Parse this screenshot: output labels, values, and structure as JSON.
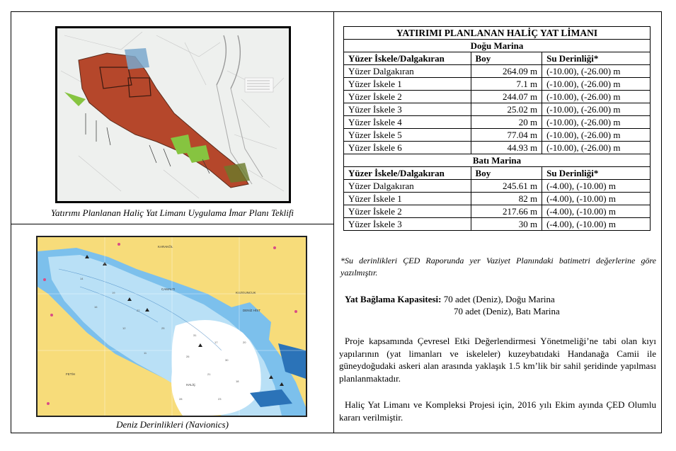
{
  "left": {
    "plan_caption": "Yatırımı Planlanan Haliç Yat Limanı Uygulama İmar Planı Teklifi",
    "map_caption": "Deniz Derinlikleri (Navionics)",
    "map_labels": [
      "HALİÇ",
      "FETİH",
      "KARAKÖL",
      "CAMALTI",
      "KUZGUNCUK",
      "DENİZ HİST"
    ],
    "map_depths": [
      "14",
      "19",
      "22",
      "25",
      "31",
      "17",
      "26",
      "30",
      "11",
      "21",
      "18",
      "28",
      "23",
      "12",
      "20",
      "16"
    ]
  },
  "table": {
    "title": "YATIRIMI PLANLANAN HALİÇ YAT LİMANI",
    "east_title": "Doğu Marina",
    "west_title": "Batı Marina",
    "headers": [
      "Yüzer İskele/Dalgakıran",
      "Boy",
      "Su Derinliği*"
    ],
    "east_rows": [
      [
        "Yüzer Dalgakıran",
        "264.09 m",
        "(-10.00), (-26.00) m"
      ],
      [
        "Yüzer İskele 1",
        "7.1 m",
        "(-10.00), (-26.00) m"
      ],
      [
        "Yüzer İskele 2",
        "244.07 m",
        "(-10.00), (-26.00) m"
      ],
      [
        "Yüzer İskele 3",
        "25.02 m",
        "(-10.00), (-26.00) m"
      ],
      [
        "Yüzer İskele 4",
        "20 m",
        "(-10.00), (-26.00) m"
      ],
      [
        "Yüzer İskele 5",
        "77.04 m",
        "(-10.00), (-26.00) m"
      ],
      [
        "Yüzer İskele 6",
        "44.93 m",
        "(-10.00), (-26.00) m"
      ]
    ],
    "west_rows": [
      [
        "Yüzer Dalgakıran",
        "245.61 m",
        "(-4.00), (-10.00) m"
      ],
      [
        "Yüzer İskele 1",
        "82 m",
        "(-4.00), (-10.00) m"
      ],
      [
        "Yüzer İskele 2",
        "217.66 m",
        "(-4.00), (-10.00) m"
      ],
      [
        "Yüzer İskele 3",
        "30 m",
        "(-4.00), (-10.00) m"
      ]
    ]
  },
  "note": "*Su derinlikleri ÇED Raporunda yer Vaziyet Planındaki batimetri değerlerine göre yazılmıştır.",
  "capacity": {
    "label": "Yat Bağlama Kapasitesi:",
    "line1": "70 adet (Deniz), Doğu Marina",
    "line2": "70 adet (Deniz), Batı Marina"
  },
  "paragraphs": [
    "Proje kapsamında Çevresel Etki Değerlendirmesi Yönetmeliği’ne tabi olan kıyı yapılarının (yat limanları ve iskeleler) kuzeybatıdaki Handanağa Camii ile güneydoğudaki askeri alan arasında yaklaşık 1.5 km’lik bir sahil şeridinde yapılması planlanmaktadır.",
    "Haliç Yat Limanı ve Kompleksi Projesi için, 2016 yılı Ekim ayında ÇED Olumlu kararı verilmiştir."
  ],
  "colors": {
    "plan_zone": "#b5472b",
    "water_deep": "#7cc0ec",
    "water_light": "#b9e0f6",
    "land": "#f7dc7a",
    "green_zone": "#86c440"
  }
}
